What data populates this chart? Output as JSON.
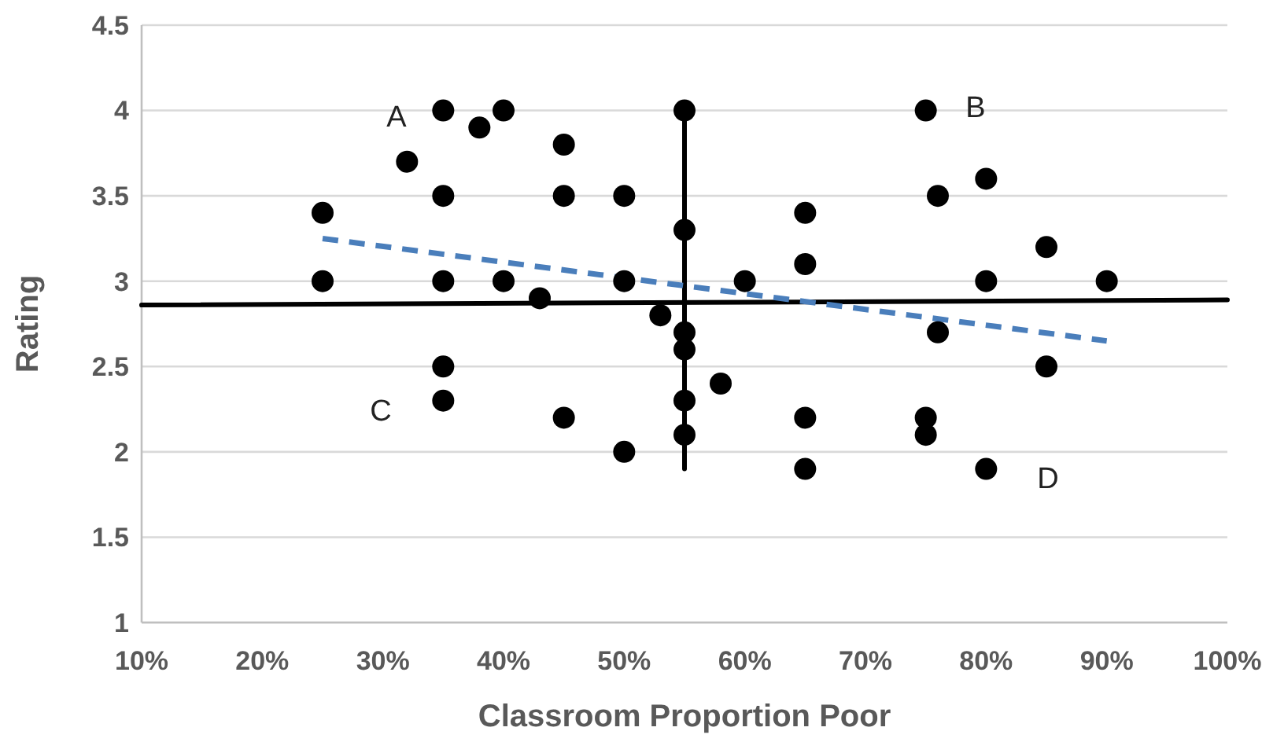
{
  "chart_data": {
    "type": "scatter",
    "xlabel": "Classroom Proportion Poor",
    "ylabel": "Rating",
    "xlim": [
      10,
      100
    ],
    "ylim": [
      1,
      4.5
    ],
    "xticks": [
      {
        "value": 10,
        "label": "10%"
      },
      {
        "value": 20,
        "label": "20%"
      },
      {
        "value": 30,
        "label": "30%"
      },
      {
        "value": 40,
        "label": "40%"
      },
      {
        "value": 50,
        "label": "50%"
      },
      {
        "value": 60,
        "label": "60%"
      },
      {
        "value": 70,
        "label": "70%"
      },
      {
        "value": 80,
        "label": "80%"
      },
      {
        "value": 90,
        "label": "90%"
      },
      {
        "value": 100,
        "label": "100%"
      }
    ],
    "yticks": [
      1,
      1.5,
      2,
      2.5,
      3,
      3.5,
      4,
      4.5
    ],
    "grid": "y",
    "series": [
      {
        "color": "#000000",
        "marker": "circle",
        "x": [
          25,
          25,
          32,
          35,
          35,
          35,
          35,
          35,
          38,
          40,
          40,
          43,
          45,
          45,
          45,
          50,
          50,
          50,
          53,
          55,
          55,
          55,
          55,
          55,
          55,
          58,
          60,
          65,
          65,
          65,
          65,
          75,
          75,
          75,
          76,
          76,
          80,
          80,
          80,
          85,
          85,
          90
        ],
        "values": [
          3.4,
          3,
          3.7,
          4,
          3.5,
          3,
          2.5,
          2.3,
          3.9,
          4,
          3,
          2.9,
          3.8,
          3.5,
          2.2,
          3.5,
          3,
          2,
          2.8,
          4,
          3.3,
          2.7,
          2.6,
          2.3,
          2.1,
          2.4,
          3,
          3.4,
          3.1,
          2.2,
          1.9,
          4,
          2.2,
          2.1,
          3.5,
          2.7,
          3.6,
          3,
          1.9,
          3.2,
          2.5,
          3
        ]
      },
      {
        "type": "line",
        "color": "#000000",
        "line_style": "solid",
        "x": [
          10,
          100
        ],
        "values": [
          2.86,
          2.89
        ]
      },
      {
        "type": "line",
        "color": "#000000",
        "line_style": "solid",
        "x": [
          55,
          55
        ],
        "values": [
          1.9,
          4
        ]
      },
      {
        "type": "line",
        "color": "#4a7ebb",
        "line_style": "dashed",
        "x": [
          25,
          90
        ],
        "values": [
          3.25,
          2.65
        ]
      }
    ],
    "annotations": [
      "A",
      "B",
      "C",
      "D"
    ]
  }
}
